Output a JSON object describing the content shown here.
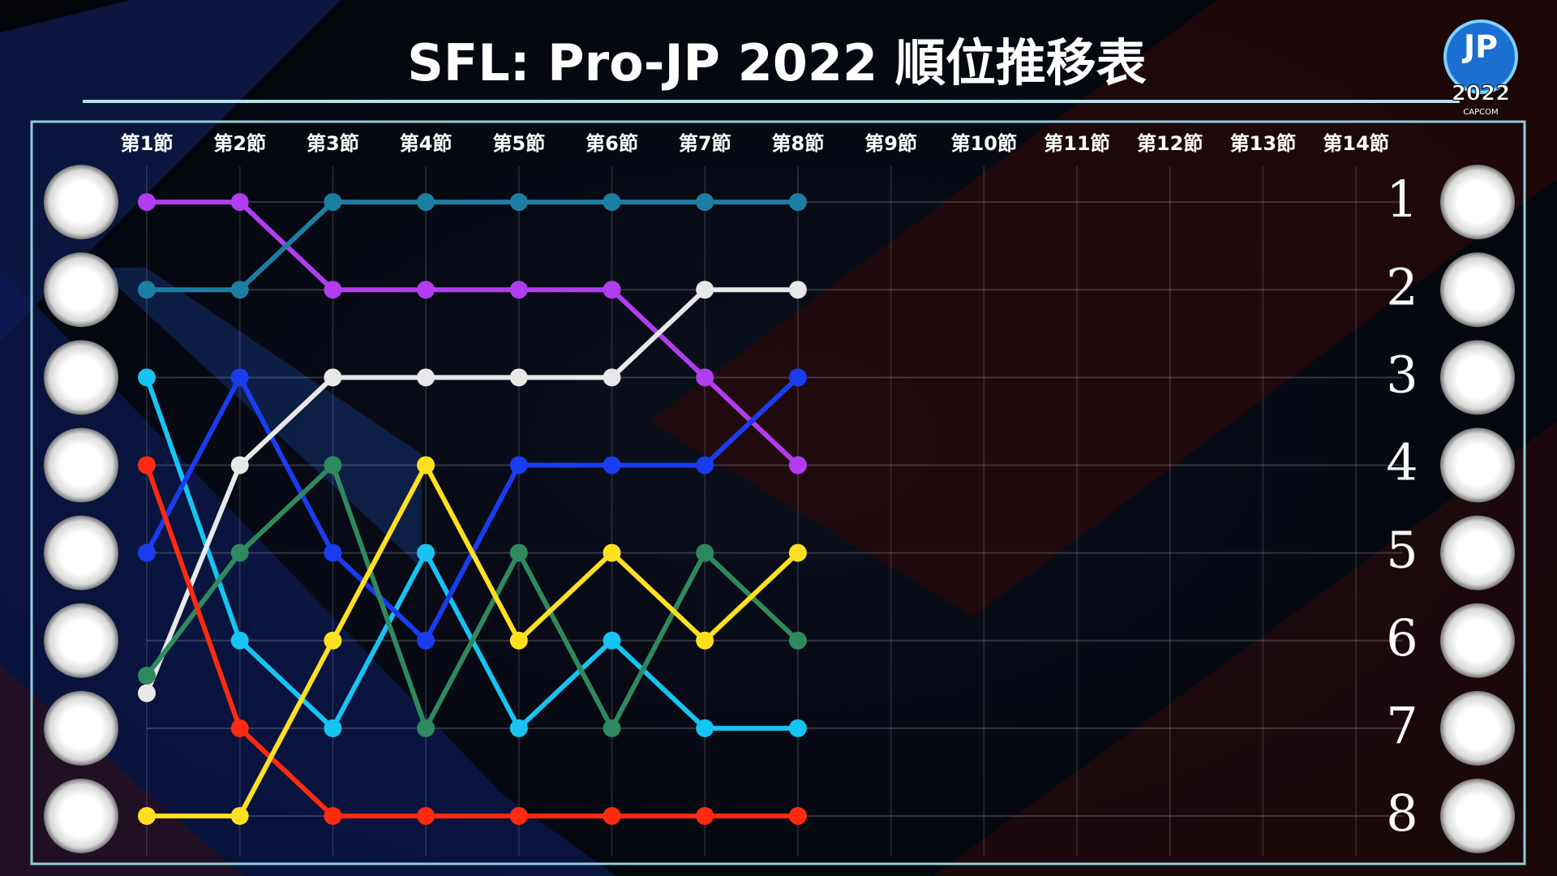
{
  "chart_data": {
    "type": "line",
    "title": "SFL: Pro-JP 2022  順位推移表",
    "logo": {
      "top": "JP",
      "year": "2022",
      "maker": "CAPCOM"
    },
    "categories": [
      "第1節",
      "第2節",
      "第3節",
      "第4節",
      "第5節",
      "第6節",
      "第7節",
      "第8節",
      "第9節",
      "第10節",
      "第11節",
      "第12節",
      "第13節",
      "第14節"
    ],
    "ylim": [
      0.5,
      8.5
    ],
    "inverted": true,
    "yticks": [
      1,
      2,
      3,
      4,
      5,
      6,
      7,
      8
    ],
    "grid": true,
    "series": [
      {
        "color": "#b23cf0",
        "values": [
          1,
          1,
          2,
          2,
          2,
          2,
          3,
          4,
          null,
          null,
          null,
          null,
          null,
          null
        ]
      },
      {
        "color": "#1c7ea3",
        "values": [
          2,
          2,
          1,
          1,
          1,
          1,
          1,
          1,
          null,
          null,
          null,
          null,
          null,
          null
        ]
      },
      {
        "color": "#17c3f0",
        "values": [
          3,
          6,
          7,
          5,
          7,
          6,
          7,
          7,
          null,
          null,
          null,
          null,
          null,
          null
        ]
      },
      {
        "color": "#1a3cf0",
        "values": [
          5,
          3,
          5,
          6,
          4,
          4,
          4,
          3,
          null,
          null,
          null,
          null,
          null,
          null
        ]
      },
      {
        "color": "#e8e8e8",
        "values": [
          6.6,
          4,
          3,
          3,
          3,
          3,
          2,
          2,
          null,
          null,
          null,
          null,
          null,
          null
        ]
      },
      {
        "color": "#2e8a5e",
        "values": [
          6.4,
          5,
          4,
          7,
          5,
          7,
          5,
          6,
          null,
          null,
          null,
          null,
          null,
          null
        ]
      },
      {
        "color": "#ff2a10",
        "values": [
          4,
          7,
          8,
          8,
          8,
          8,
          8,
          8,
          null,
          null,
          null,
          null,
          null,
          null
        ]
      },
      {
        "color": "#ffe020",
        "values": [
          8,
          8,
          6,
          4,
          6,
          5,
          6,
          5,
          null,
          null,
          null,
          null,
          null,
          null
        ]
      }
    ]
  }
}
